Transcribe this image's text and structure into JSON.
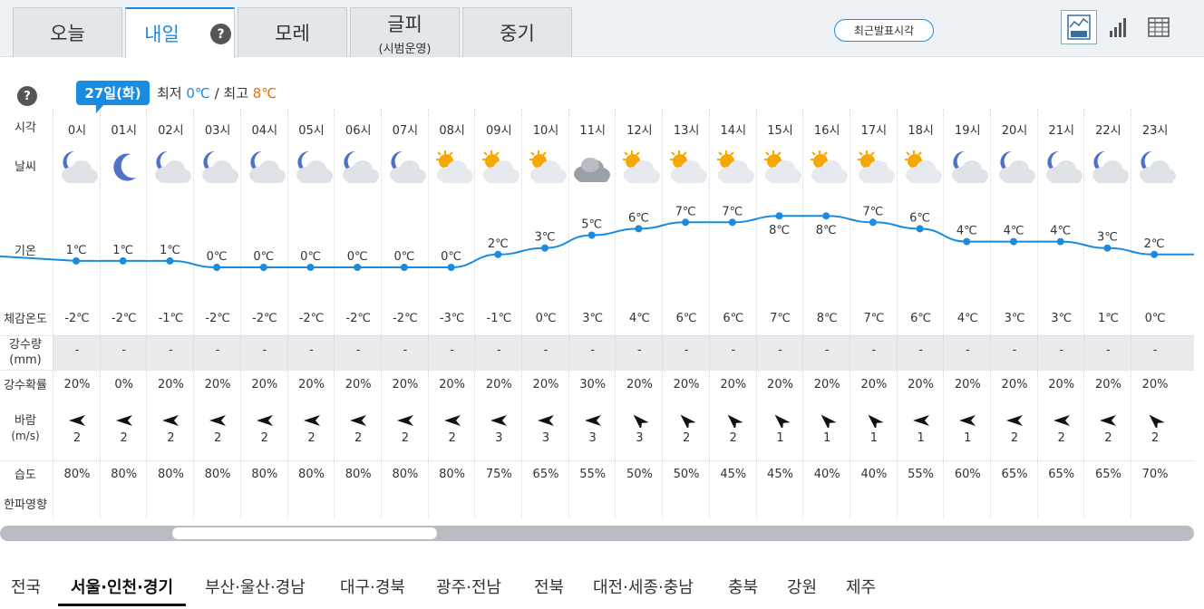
{
  "tabs": [
    {
      "label": "오늘",
      "sub": ""
    },
    {
      "label": "내일",
      "sub": ""
    },
    {
      "label": "모레",
      "sub": ""
    },
    {
      "label": "글피",
      "sub": "(시범운영)"
    },
    {
      "label": "중기",
      "sub": ""
    }
  ],
  "help_glyph": "?",
  "recent_button": "최근발표시각",
  "view_icons": [
    "line-graph-icon",
    "bar-chart-icon",
    "table-icon"
  ],
  "date": {
    "badge": "27일(화)",
    "min_label": "최저",
    "min_value": "0℃",
    "separator": "/",
    "max_label": "최고",
    "max_value": "8℃"
  },
  "row_labels": {
    "time": "시각",
    "weather": "날씨",
    "temp": "기온",
    "feels": "체감온도",
    "rain_line1": "강수량",
    "rain_line2": "(mm)",
    "rain_prob": "강수확률",
    "wind_line1": "바람",
    "wind_line2": "(m/s)",
    "humidity": "습도",
    "cold": "한파영향"
  },
  "colors": {
    "accent": "#1b8be0",
    "min": "#1b8be0",
    "max": "#e8700a",
    "line": "#1b8be0"
  },
  "hours": [
    {
      "time": "0시",
      "weather": "night-partly-cloudy",
      "temp": 1,
      "temp_label": "1℃",
      "feels": "-2℃",
      "rain": "-",
      "prob": "20%",
      "wind_dir": "west",
      "wind": "2",
      "hum": "80%"
    },
    {
      "time": "01시",
      "weather": "night-clear",
      "temp": 1,
      "temp_label": "1℃",
      "feels": "-2℃",
      "rain": "-",
      "prob": "0%",
      "wind_dir": "west",
      "wind": "2",
      "hum": "80%"
    },
    {
      "time": "02시",
      "weather": "night-partly-cloudy",
      "temp": 1,
      "temp_label": "1℃",
      "feels": "-1℃",
      "rain": "-",
      "prob": "20%",
      "wind_dir": "west",
      "wind": "2",
      "hum": "80%"
    },
    {
      "time": "03시",
      "weather": "night-partly-cloudy",
      "temp": 0,
      "temp_label": "0℃",
      "feels": "-2℃",
      "rain": "-",
      "prob": "20%",
      "wind_dir": "west",
      "wind": "2",
      "hum": "80%"
    },
    {
      "time": "04시",
      "weather": "night-partly-cloudy",
      "temp": 0,
      "temp_label": "0℃",
      "feels": "-2℃",
      "rain": "-",
      "prob": "20%",
      "wind_dir": "west",
      "wind": "2",
      "hum": "80%"
    },
    {
      "time": "05시",
      "weather": "night-partly-cloudy",
      "temp": 0,
      "temp_label": "0℃",
      "feels": "-2℃",
      "rain": "-",
      "prob": "20%",
      "wind_dir": "west",
      "wind": "2",
      "hum": "80%"
    },
    {
      "time": "06시",
      "weather": "night-partly-cloudy",
      "temp": 0,
      "temp_label": "0℃",
      "feels": "-2℃",
      "rain": "-",
      "prob": "20%",
      "wind_dir": "west",
      "wind": "2",
      "hum": "80%"
    },
    {
      "time": "07시",
      "weather": "night-partly-cloudy",
      "temp": 0,
      "temp_label": "0℃",
      "feels": "-2℃",
      "rain": "-",
      "prob": "20%",
      "wind_dir": "west",
      "wind": "2",
      "hum": "80%"
    },
    {
      "time": "08시",
      "weather": "day-partly-cloudy",
      "temp": 0,
      "temp_label": "0℃",
      "feels": "-3℃",
      "rain": "-",
      "prob": "20%",
      "wind_dir": "west",
      "wind": "2",
      "hum": "80%"
    },
    {
      "time": "09시",
      "weather": "day-partly-cloudy",
      "temp": 2,
      "temp_label": "2℃",
      "feels": "-1℃",
      "rain": "-",
      "prob": "20%",
      "wind_dir": "west",
      "wind": "3",
      "hum": "75%"
    },
    {
      "time": "10시",
      "weather": "day-partly-cloudy",
      "temp": 3,
      "temp_label": "3℃",
      "feels": "0℃",
      "rain": "-",
      "prob": "20%",
      "wind_dir": "west",
      "wind": "3",
      "hum": "65%"
    },
    {
      "time": "11시",
      "weather": "cloudy",
      "temp": 5,
      "temp_label": "5℃",
      "feels": "3℃",
      "rain": "-",
      "prob": "30%",
      "wind_dir": "west",
      "wind": "3",
      "hum": "55%"
    },
    {
      "time": "12시",
      "weather": "day-partly-cloudy",
      "temp": 6,
      "temp_label": "6℃",
      "feels": "4℃",
      "rain": "-",
      "prob": "20%",
      "wind_dir": "northwest",
      "wind": "3",
      "hum": "50%"
    },
    {
      "time": "13시",
      "weather": "day-partly-cloudy",
      "temp": 7,
      "temp_label": "7℃",
      "feels": "6℃",
      "rain": "-",
      "prob": "20%",
      "wind_dir": "northwest",
      "wind": "2",
      "hum": "50%"
    },
    {
      "time": "14시",
      "weather": "day-partly-cloudy",
      "temp": 7,
      "temp_label": "7℃",
      "feels": "6℃",
      "rain": "-",
      "prob": "20%",
      "wind_dir": "northwest",
      "wind": "2",
      "hum": "45%"
    },
    {
      "time": "15시",
      "weather": "day-partly-cloudy",
      "temp": 8,
      "temp_label": "8℃",
      "feels": "7℃",
      "rain": "-",
      "prob": "20%",
      "wind_dir": "northwest",
      "wind": "1",
      "hum": "45%"
    },
    {
      "time": "16시",
      "weather": "day-partly-cloudy",
      "temp": 8,
      "temp_label": "8℃",
      "feels": "8℃",
      "rain": "-",
      "prob": "20%",
      "wind_dir": "northwest",
      "wind": "1",
      "hum": "40%"
    },
    {
      "time": "17시",
      "weather": "day-partly-cloudy",
      "temp": 7,
      "temp_label": "7℃",
      "feels": "7℃",
      "rain": "-",
      "prob": "20%",
      "wind_dir": "northwest",
      "wind": "1",
      "hum": "40%"
    },
    {
      "time": "18시",
      "weather": "day-partly-cloudy",
      "temp": 6,
      "temp_label": "6℃",
      "feels": "6℃",
      "rain": "-",
      "prob": "20%",
      "wind_dir": "west",
      "wind": "1",
      "hum": "55%"
    },
    {
      "time": "19시",
      "weather": "night-partly-cloudy",
      "temp": 4,
      "temp_label": "4℃",
      "feels": "4℃",
      "rain": "-",
      "prob": "20%",
      "wind_dir": "west",
      "wind": "1",
      "hum": "60%"
    },
    {
      "time": "20시",
      "weather": "night-partly-cloudy",
      "temp": 4,
      "temp_label": "4℃",
      "feels": "3℃",
      "rain": "-",
      "prob": "20%",
      "wind_dir": "west",
      "wind": "2",
      "hum": "65%"
    },
    {
      "time": "21시",
      "weather": "night-partly-cloudy",
      "temp": 4,
      "temp_label": "4℃",
      "feels": "3℃",
      "rain": "-",
      "prob": "20%",
      "wind_dir": "west",
      "wind": "2",
      "hum": "65%"
    },
    {
      "time": "22시",
      "weather": "night-partly-cloudy",
      "temp": 3,
      "temp_label": "3℃",
      "feels": "1℃",
      "rain": "-",
      "prob": "20%",
      "wind_dir": "west",
      "wind": "2",
      "hum": "65%"
    },
    {
      "time": "23시",
      "weather": "night-partly-cloudy",
      "temp": 2,
      "temp_label": "2℃",
      "feels": "0℃",
      "rain": "-",
      "prob": "20%",
      "wind_dir": "northwest",
      "wind": "2",
      "hum": "70%"
    }
  ],
  "regions": [
    {
      "label": "전국",
      "active": false
    },
    {
      "label": "서울·인천·경기",
      "active": true
    },
    {
      "label": "부산·울산·경남",
      "active": false
    },
    {
      "label": "대구·경북",
      "active": false
    },
    {
      "label": "광주·전남",
      "active": false
    },
    {
      "label": "전북",
      "active": false
    },
    {
      "label": "대전·세종·충남",
      "active": false
    },
    {
      "label": "충북",
      "active": false
    },
    {
      "label": "강원",
      "active": false
    },
    {
      "label": "제주",
      "active": false
    }
  ]
}
